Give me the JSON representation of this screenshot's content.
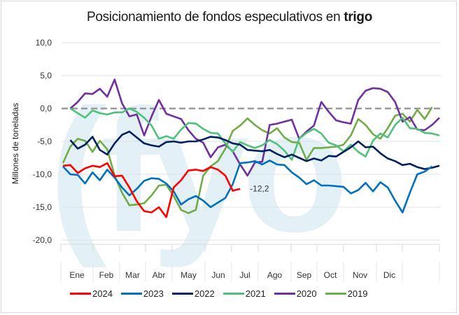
{
  "title_regular": "Posicionamiento de fondos especulativos en ",
  "title_bold": "trigo",
  "chart_data": {
    "type": "line",
    "title": "Posicionamiento de fondos especulativos en trigo",
    "xlabel": "",
    "ylabel": "Millones de toneladas",
    "ylim": [
      -20,
      10
    ],
    "yticks": [
      "10,0",
      "5,0",
      "0,0",
      "-5,0",
      "-10,0",
      "-15,0",
      "-20,0"
    ],
    "ytick_values": [
      10,
      5,
      0,
      -5,
      -10,
      -15,
      -20
    ],
    "categories": [
      "Ene",
      "Feb",
      "Mar",
      "Abr",
      "May",
      "Jun",
      "Jul",
      "Ago",
      "Sep",
      "Oct",
      "Nov",
      "Dic"
    ],
    "x_unit": "week of year (0-51)",
    "reference_line": {
      "value": 0,
      "style": "dashed",
      "color": "#999999"
    },
    "annotation": {
      "text": "-12,2",
      "series": "2024"
    },
    "legend_position": "bottom",
    "grid": true,
    "series": [
      {
        "name": "2024",
        "color": "#ff0000",
        "x": [
          0,
          1,
          2,
          3,
          4,
          5,
          6,
          7,
          8,
          9,
          10,
          11,
          12,
          13,
          14,
          15,
          16,
          17,
          18,
          19,
          20,
          21,
          22,
          23,
          24,
          25,
          26
        ],
        "values": [
          -8.7,
          -8.6,
          -9.8,
          -9.1,
          -8.7,
          -8.9,
          -8.3,
          -10.3,
          -10.2,
          -12.0,
          -14.1,
          -15.6,
          -15.8,
          -15.0,
          -16.5,
          -12.0,
          -10.9,
          -9.4,
          -9.3,
          -9.5,
          -8.9,
          -9.3,
          -10.2,
          -12.5,
          -12.2,
          null,
          null
        ]
      },
      {
        "name": "2023",
        "color": "#0070c0",
        "x": [
          0,
          1,
          2,
          3,
          4,
          5,
          6,
          7,
          8,
          9,
          10,
          11,
          12,
          13,
          14,
          15,
          16,
          17,
          18,
          19,
          20,
          21,
          22,
          23,
          24,
          25,
          26,
          27,
          28,
          29,
          30,
          31,
          32,
          33,
          34,
          35,
          36,
          37,
          38,
          39,
          40,
          41,
          42,
          43,
          44,
          45,
          46,
          47,
          48,
          49,
          50,
          51
        ],
        "values": [
          -8.8,
          -10.0,
          -10.1,
          -11.4,
          -9.7,
          -10.9,
          -9.3,
          -10.5,
          -12.0,
          -13.2,
          -12.2,
          -11.0,
          -10.6,
          -10.7,
          -11.4,
          -12.6,
          -14.6,
          -13.8,
          -13.3,
          -14.0,
          -15.0,
          -14.3,
          -13.6,
          -11.5,
          -8.3,
          -8.2,
          -8.0,
          -8.5,
          -7.9,
          -8.5,
          -8.6,
          -9.7,
          -10.5,
          -11.5,
          -10.9,
          -11.7,
          -11.7,
          -11.8,
          -11.9,
          -12.9,
          -12.4,
          -11.3,
          -12.6,
          -11.2,
          -12.0,
          -14.0,
          -15.8,
          -12.8,
          -10.0,
          -9.6,
          -8.8,
          null
        ]
      },
      {
        "name": "2022",
        "color": "#002060",
        "x": [
          1,
          2,
          3,
          4,
          5,
          6,
          7,
          8,
          9,
          10,
          11,
          12,
          13,
          14,
          15,
          16,
          17,
          18,
          19,
          20,
          21,
          22,
          23,
          24,
          25,
          26,
          27,
          28,
          29,
          30,
          31,
          32,
          33,
          34,
          35,
          36,
          37,
          38,
          39,
          40,
          41,
          42,
          43,
          44,
          45,
          46,
          47,
          48,
          49,
          50,
          51
        ],
        "values": [
          -4.8,
          -6.1,
          -5.5,
          -4.3,
          -6.3,
          -7.0,
          -5.3,
          -4.0,
          -3.5,
          -4.4,
          -5.3,
          -5.6,
          -5.8,
          -5.1,
          -5.0,
          -5.2,
          -5.0,
          -5.0,
          -4.7,
          -4.3,
          -4.4,
          -4.8,
          -5.3,
          -5.5,
          -6.3,
          -6.4,
          -6.5,
          -6.3,
          -6.9,
          -7.4,
          -7.0,
          -7.5,
          -8.0,
          -7.6,
          -7.9,
          -7.2,
          -7.3,
          -6.6,
          -5.9,
          -5.0,
          -5.9,
          -5.8,
          -6.8,
          -7.6,
          -8.0,
          -8.6,
          -8.4,
          -8.9,
          -9.2,
          -9.0,
          -8.7
        ]
      },
      {
        "name": "2021",
        "color": "#4fc17b",
        "x": [
          1,
          2,
          3,
          4,
          5,
          6,
          7,
          8,
          9,
          10,
          11,
          12,
          13,
          14,
          15,
          16,
          17,
          18,
          19,
          20,
          21,
          22,
          23,
          24,
          25,
          26,
          27,
          28,
          29,
          30,
          31,
          32,
          33,
          34,
          35,
          36,
          37,
          38,
          39,
          40,
          41,
          42,
          43,
          44,
          45,
          46,
          47,
          48,
          49,
          50,
          51
        ],
        "values": [
          0.0,
          -0.7,
          -1.4,
          -0.3,
          -0.7,
          -0.9,
          -0.6,
          -0.6,
          0.0,
          -0.5,
          -1.4,
          -2.6,
          -4.6,
          -4.2,
          -4.6,
          -3.2,
          -2.2,
          -2.3,
          -3.1,
          -3.7,
          -3.8,
          -5.3,
          -6.6,
          -5.1,
          -5.6,
          -6.0,
          -5.6,
          -4.8,
          -5.4,
          -6.4,
          -7.8,
          -4.6,
          -3.7,
          -3.1,
          -3.8,
          -5.2,
          -5.6,
          -6.5,
          -5.5,
          -6.6,
          -7.3,
          -4.9,
          -3.8,
          -4.4,
          -2.5,
          -1.4,
          -3.0,
          -3.1,
          -3.7,
          -3.8,
          -4.1
        ]
      },
      {
        "name": "2020",
        "color": "#7030a0",
        "x": [
          1,
          2,
          3,
          4,
          5,
          6,
          7,
          8,
          9,
          10,
          11,
          12,
          13,
          14,
          15,
          16,
          17,
          18,
          19,
          20,
          21,
          22,
          23,
          24,
          25,
          26,
          27,
          28,
          29,
          30,
          31,
          32,
          33,
          34,
          35,
          36,
          37,
          38,
          39,
          40,
          41,
          42,
          43,
          44,
          45,
          46,
          47,
          48,
          49,
          50,
          51
        ],
        "values": [
          0.0,
          1.0,
          2.3,
          2.2,
          3.0,
          1.8,
          4.4,
          0.8,
          -1.2,
          -0.9,
          -4.1,
          -1.2,
          1.3,
          -0.8,
          -1.2,
          -1.6,
          -3.3,
          -4.6,
          -5.2,
          -7.4,
          -5.9,
          -5.5,
          -6.5,
          -8.5,
          -10.2,
          -8.2,
          -8.1,
          -2.5,
          -2.3,
          -2.0,
          -1.7,
          -4.6,
          -3.5,
          -2.6,
          1.0,
          -0.5,
          -1.8,
          -2.1,
          -2.3,
          1.3,
          2.7,
          3.1,
          3.0,
          2.5,
          1.0,
          -2.0,
          -1.3,
          -3.2,
          -3.3,
          -2.5,
          -1.4
        ]
      },
      {
        "name": "2019",
        "color": "#70ad47",
        "x": [
          0,
          1,
          2,
          3,
          4,
          5,
          6,
          7,
          8,
          9,
          10,
          11,
          12,
          13,
          14,
          15,
          16,
          17,
          18,
          19,
          20,
          21,
          22,
          23,
          24,
          25,
          26,
          27,
          28,
          29,
          30,
          31,
          32,
          33,
          34,
          35,
          36,
          37,
          38,
          39,
          40,
          41,
          42,
          43,
          44,
          45,
          46,
          47,
          48,
          49,
          50,
          51
        ],
        "values": [
          -8.3,
          -5.8,
          -4.6,
          -4.9,
          -6.6,
          -4.9,
          -6.2,
          -10.2,
          -12.8,
          -14.7,
          -14.6,
          -14.4,
          -13.2,
          -11.7,
          -11.6,
          -13.3,
          -15.4,
          -15.9,
          -15.4,
          -10.2,
          -8.8,
          -8.0,
          -6.1,
          -3.4,
          -2.6,
          -1.5,
          -2.5,
          -3.3,
          -3.8,
          -3.0,
          -4.4,
          -5.1,
          -5.2,
          -7.8,
          -6.0,
          -6.0,
          -5.9,
          -5.8,
          -5.5,
          -4.1,
          -1.6,
          -2.5,
          -3.9,
          -4.6,
          -3.0,
          -1.1,
          -0.8,
          -2.0,
          -0.2,
          -1.6,
          0.2,
          null
        ]
      }
    ]
  },
  "legend": [
    {
      "label": "2024",
      "color": "#ff0000"
    },
    {
      "label": "2023",
      "color": "#0070c0"
    },
    {
      "label": "2022",
      "color": "#002060"
    },
    {
      "label": "2021",
      "color": "#4fc17b"
    },
    {
      "label": "2020",
      "color": "#7030a0"
    },
    {
      "label": "2019",
      "color": "#70ad47"
    }
  ],
  "watermark": {
    "text": "(fyo",
    "color": "#e3f0f6"
  }
}
